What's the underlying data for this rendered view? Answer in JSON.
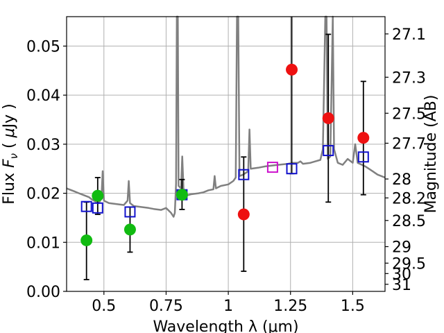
{
  "chart_data": {
    "type": "scatter",
    "xlabel": "Wavelength  λ (μm)",
    "ylabel_left": "Flux  F_ν  ( μJy )",
    "ylabel_right": "Magnitude (AB)",
    "xlim": [
      0.35,
      1.63
    ],
    "ylim": [
      0.0,
      0.056
    ],
    "grid": true,
    "x_ticks": [
      0.5,
      0.75,
      1.0,
      1.25,
      1.5
    ],
    "x_tick_labels": [
      "0.5",
      "0.75",
      "1",
      "1.25",
      "1.5"
    ],
    "y_ticks": [
      0.0,
      0.01,
      0.02,
      0.03,
      0.04,
      0.05
    ],
    "y_tick_labels": [
      "0.00",
      "0.01",
      "0.02",
      "0.03",
      "0.04",
      "0.05"
    ],
    "right_ticks": [
      27.1,
      27.3,
      27.5,
      27.7,
      28,
      28.2,
      28.5,
      29,
      29.5,
      30,
      31
    ],
    "right_tick_labels": [
      "27.1",
      "27.3",
      "27.5",
      "27.7",
      "28",
      "28.2",
      "28.5",
      "29",
      "29.5",
      "30",
      "31"
    ],
    "colors": {
      "model": "#808080",
      "observed": "#ee1111",
      "observed_green": "#11bb11",
      "model_phot": "#1111cc",
      "model_phot_magenta": "#cc11cc",
      "errorbar": "#000000",
      "grid": "#b0b0b0"
    },
    "series": [
      {
        "kind": "model_spectrum",
        "points": [
          [
            0.35,
            0.021
          ],
          [
            0.36,
            0.0208
          ],
          [
            0.38,
            0.0204
          ],
          [
            0.4,
            0.02
          ],
          [
            0.42,
            0.0196
          ],
          [
            0.44,
            0.0192
          ],
          [
            0.45,
            0.0188
          ],
          [
            0.46,
            0.0185
          ],
          [
            0.47,
            0.0182
          ],
          [
            0.48,
            0.018
          ],
          [
            0.49,
            0.019
          ],
          [
            0.495,
            0.0245
          ],
          [
            0.5,
            0.0185
          ],
          [
            0.52,
            0.018
          ],
          [
            0.55,
            0.0178
          ],
          [
            0.58,
            0.0176
          ],
          [
            0.595,
            0.0185
          ],
          [
            0.6,
            0.0225
          ],
          [
            0.605,
            0.018
          ],
          [
            0.62,
            0.0174
          ],
          [
            0.65,
            0.0172
          ],
          [
            0.68,
            0.017
          ],
          [
            0.7,
            0.0168
          ],
          [
            0.73,
            0.0166
          ],
          [
            0.75,
            0.017
          ],
          [
            0.77,
            0.016
          ],
          [
            0.78,
            0.0152
          ],
          [
            0.785,
            0.016
          ],
          [
            0.79,
            0.022
          ],
          [
            0.793,
            0.056
          ],
          [
            0.797,
            0.056
          ],
          [
            0.8,
            0.0215
          ],
          [
            0.81,
            0.021
          ],
          [
            0.815,
            0.0275
          ],
          [
            0.82,
            0.021
          ],
          [
            0.83,
            0.0195
          ],
          [
            0.85,
            0.0198
          ],
          [
            0.88,
            0.02
          ],
          [
            0.9,
            0.0202
          ],
          [
            0.92,
            0.0206
          ],
          [
            0.94,
            0.0208
          ],
          [
            0.945,
            0.0235
          ],
          [
            0.95,
            0.021
          ],
          [
            0.97,
            0.0215
          ],
          [
            1.0,
            0.0218
          ],
          [
            1.02,
            0.0225
          ],
          [
            1.03,
            0.0232
          ],
          [
            1.035,
            0.056
          ],
          [
            1.04,
            0.056
          ],
          [
            1.045,
            0.0235
          ],
          [
            1.06,
            0.0238
          ],
          [
            1.08,
            0.0245
          ],
          [
            1.085,
            0.033
          ],
          [
            1.09,
            0.025
          ],
          [
            1.12,
            0.0252
          ],
          [
            1.15,
            0.0255
          ],
          [
            1.2,
            0.0258
          ],
          [
            1.24,
            0.026
          ],
          [
            1.26,
            0.0262
          ],
          [
            1.28,
            0.0262
          ],
          [
            1.29,
            0.0265
          ],
          [
            1.3,
            0.026
          ],
          [
            1.33,
            0.0262
          ],
          [
            1.35,
            0.0265
          ],
          [
            1.37,
            0.0268
          ],
          [
            1.38,
            0.029
          ],
          [
            1.39,
            0.056
          ],
          [
            1.395,
            0.056
          ],
          [
            1.4,
            0.027
          ],
          [
            1.41,
            0.0275
          ],
          [
            1.42,
            0.056
          ],
          [
            1.425,
            0.029
          ],
          [
            1.44,
            0.0262
          ],
          [
            1.46,
            0.0258
          ],
          [
            1.48,
            0.027
          ],
          [
            1.5,
            0.0262
          ],
          [
            1.51,
            0.03
          ],
          [
            1.52,
            0.0262
          ],
          [
            1.55,
            0.0255
          ],
          [
            1.58,
            0.0245
          ],
          [
            1.6,
            0.0238
          ],
          [
            1.63,
            0.0232
          ]
        ]
      },
      {
        "kind": "model_photometry",
        "points": [
          {
            "x": 0.43,
            "y": 0.0173
          },
          {
            "x": 0.475,
            "y": 0.017
          },
          {
            "x": 0.605,
            "y": 0.0162
          },
          {
            "x": 0.814,
            "y": 0.0197
          },
          {
            "x": 1.062,
            "y": 0.0238
          },
          {
            "x": 1.178,
            "y": 0.0253
          },
          {
            "x": 1.255,
            "y": 0.025
          },
          {
            "x": 1.402,
            "y": 0.0287
          },
          {
            "x": 1.543,
            "y": 0.0274
          }
        ]
      },
      {
        "kind": "observed_photometry",
        "points": [
          {
            "x": 0.43,
            "y": 0.0104,
            "color": "green",
            "err_lo": 0.0024,
            "err_hi": 0.0182
          },
          {
            "x": 0.475,
            "y": 0.0195,
            "color": "green",
            "err_lo": 0.0157,
            "err_hi": 0.0232
          },
          {
            "x": 0.605,
            "y": 0.0126,
            "color": "green",
            "err_lo": 0.008,
            "err_hi": 0.0172
          },
          {
            "x": 0.814,
            "y": 0.0197,
            "color": "green",
            "err_lo": 0.0167,
            "err_hi": 0.0228
          },
          {
            "x": 1.062,
            "y": 0.0157,
            "color": "red",
            "err_lo": 0.0041,
            "err_hi": 0.0274
          },
          {
            "x": 1.255,
            "y": 0.0452,
            "color": "red",
            "err_lo": 0.024,
            "err_hi": 0.056
          },
          {
            "x": 1.402,
            "y": 0.0353,
            "color": "red",
            "err_lo": 0.0182,
            "err_hi": 0.0524
          },
          {
            "x": 1.543,
            "y": 0.0313,
            "color": "red",
            "err_lo": 0.0197,
            "err_hi": 0.0428
          }
        ]
      }
    ]
  }
}
